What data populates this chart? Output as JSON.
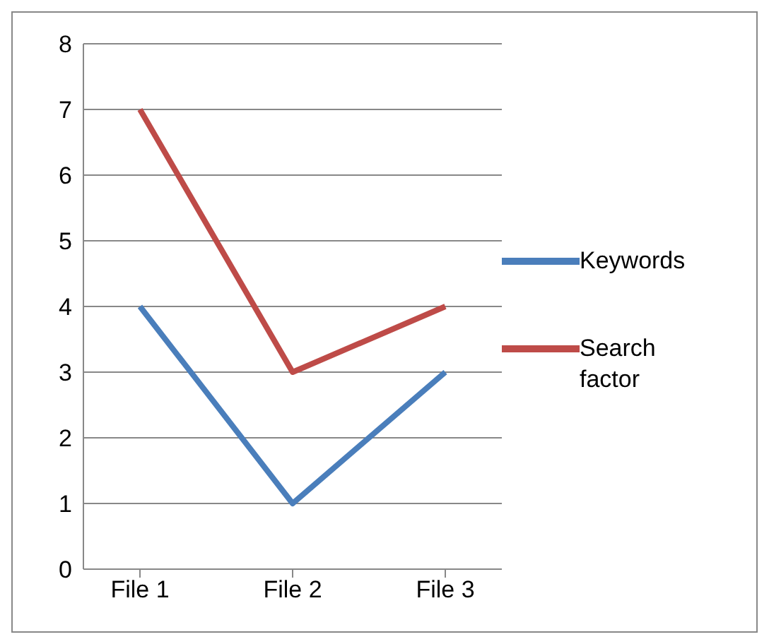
{
  "chart_data": {
    "type": "line",
    "categories": [
      "File 1",
      "File 2",
      "File 3"
    ],
    "series": [
      {
        "name": "Keywords",
        "color": "#4a7ebb",
        "values": [
          4,
          1,
          3
        ]
      },
      {
        "name": "Search factor",
        "color": "#be4b48",
        "values": [
          7,
          3,
          4
        ]
      }
    ],
    "ylim": [
      0,
      8
    ],
    "yticks": [
      0,
      1,
      2,
      3,
      4,
      5,
      6,
      7,
      8
    ],
    "grid": "y",
    "legend": "right",
    "marker": "none",
    "line_style": "solid"
  }
}
